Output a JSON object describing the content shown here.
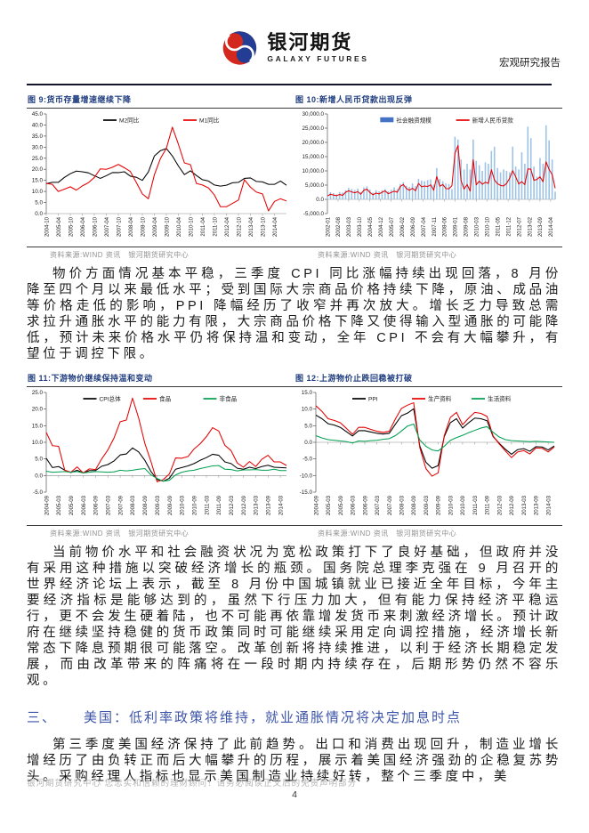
{
  "header": {
    "brand_cn": "银河期货",
    "brand_en": "GALAXY FUTURES",
    "doc_type": "宏观研究报告",
    "logo_blue": "#233D94",
    "logo_red": "#D2281E"
  },
  "figures": [
    {
      "title": "图 9:货币存量增速继续下降",
      "source": "资料来源:WIND 资讯　银河期货研究中心"
    },
    {
      "title": "图 10:新增人民币贷款出现反弹",
      "source": "资料来源:WIND 资讯　银河期货研究中心"
    },
    {
      "title": "图 11:下游物价继续保持温和变动",
      "source": "资料来源:WIND 资讯　银河期货研究中心"
    },
    {
      "title": "图 12:上游物价止跌回稳被打破",
      "source": "资料来源:WIND 资讯　银河期货研究中心"
    }
  ],
  "paragraphs": {
    "p1": "物价方面情况基本平稳，三季度 CPI 同比涨幅持续出现回落，8 月份降至四个月以来最低水平；受到国际大宗商品价格持续下降，原油、成品油等价格走低的影响，PPI 降幅经历了收窄并再次放大。增长乏力导致总需求拉升通胀水平的能力有限，大宗商品价格下降又使得输入型通胀的可能降低，预计未来价格水平仍将保持温和变动，全年 CPI 不会有大幅攀升，有望位于调控下限。",
    "p2": "当前物价水平和社会融资状况为宽松政策打下了良好基础，但政府并没有采用这种措施以突破经济增长的瓶颈。国务院总理李克强在 9 月召开的世界经济论坛上表示，截至 8 月份中国城镇就业已接近全年目标，今年主要经济指标是能够达到的，虽然下行压力加大，但有能力保持经济平稳运行，更不会发生硬着陆，也不可能再依靠增发货币来刺激经济增长。预计政府在继续坚持稳健的货币政策同时可能继续采用定向调控措施，经济增长新常态下降息预期很可能落空。改革创新将持续推进，以利于经济长期稳定发展，而由改革带来的阵痛将在一段时期内持续存在，后期形势仍然不容乐观。",
    "p3": "第三季度美国经济保持了此前趋势。出口和消费出现回升，制造业增长增经历了由负转正而后大幅攀升的历程，展示着美国经济强劲的企稳复苏势头。采购经理人指标也显示美国制造业持续好转，整个三季度中，美"
  },
  "section": {
    "number": "三、",
    "title": "美国：低利率政策将维持，就业通胀情况将决定加息时点",
    "color": "#3D55A8"
  },
  "footer": {
    "disclaimer": "银河期货研究中心 您忠实和信赖的理财顾问！请务必阅读正文后的免责声明部分",
    "page_number": "4"
  },
  "chart_data": [
    {
      "type": "line",
      "title": "货币存量增速继续下降",
      "ylim": [
        0,
        45
      ],
      "margins": {
        "l": 22,
        "r": 9,
        "t": 4,
        "b": 36
      },
      "y_ticks": [
        {
          "v": 45,
          "t": "45.0"
        },
        {
          "v": 40,
          "t": "40.0"
        },
        {
          "v": 35,
          "t": "35.0"
        },
        {
          "v": 30,
          "t": "30.0"
        },
        {
          "v": 25,
          "t": "25.0"
        },
        {
          "v": 20,
          "t": "20.0"
        },
        {
          "v": 15,
          "t": "15.0"
        },
        {
          "v": 10,
          "t": "10.0"
        },
        {
          "v": 5,
          "t": "5.0"
        },
        {
          "v": 0,
          "t": "0.0"
        }
      ],
      "x_ticks": [
        "2004-10",
        "2005-04",
        "2005-10",
        "2006-04",
        "2006-10",
        "2007-04",
        "2007-10",
        "2008-04",
        "2008-10",
        "2009-04",
        "2009-10",
        "2010-04",
        "2010-10",
        "2011-04",
        "2011-10",
        "2012-04",
        "2012-10",
        "2013-04",
        "2013-10",
        "2014-04"
      ],
      "x_tick_every": 2,
      "series": [
        {
          "name": "M2同比",
          "type": "line",
          "color": "#000000",
          "values": [
            13.5,
            14.1,
            14.1,
            16.3,
            18.0,
            19.2,
            18.9,
            18.4,
            17.1,
            15.9,
            17.1,
            18.5,
            18.5,
            18.9,
            16.9,
            16.4,
            15.0,
            18.8,
            26.0,
            28.4,
            29.4,
            26.0,
            21.5,
            17.6,
            19.3,
            17.2,
            15.3,
            14.7,
            12.9,
            12.4,
            12.8,
            13.9,
            14.1,
            15.9,
            16.1,
            14.5,
            14.3,
            13.2,
            13.2,
            14.7,
            12.8
          ]
        },
        {
          "name": "M1同比",
          "type": "line",
          "color": "#E60000",
          "values": [
            13.6,
            13.2,
            10.0,
            11.0,
            12.1,
            10.6,
            12.5,
            13.9,
            16.3,
            20.2,
            20.0,
            20.9,
            22.2,
            20.7,
            19.0,
            14.0,
            8.9,
            6.7,
            17.5,
            24.8,
            29.5,
            39.0,
            31.3,
            22.9,
            22.1,
            13.6,
            12.9,
            11.6,
            8.4,
            3.1,
            3.1,
            4.6,
            6.1,
            15.3,
            11.9,
            9.7,
            8.9,
            1.2,
            5.5,
            6.7,
            5.7
          ]
        }
      ]
    },
    {
      "type": "bar-line",
      "title": "新增人民币贷款出现反弹",
      "ylim": [
        -5000,
        30000
      ],
      "margins": {
        "l": 37,
        "r": 8,
        "t": 4,
        "b": 36
      },
      "y_ticks": [
        {
          "v": 30000,
          "t": "30,000.0"
        },
        {
          "v": 25000,
          "t": "25,000.0"
        },
        {
          "v": 20000,
          "t": "20,000.0"
        },
        {
          "v": 15000,
          "t": "15,000.0"
        },
        {
          "v": 10000,
          "t": "10,000.0"
        },
        {
          "v": 5000,
          "t": "5,000.0"
        },
        {
          "v": 0,
          "t": "0.0"
        },
        {
          "v": -5000,
          "t": "-5,000.0"
        }
      ],
      "x_ticks": [
        "2002-01",
        "2002-08",
        "2003-03",
        "2003-10",
        "2004-05",
        "2004-12",
        "2005-07",
        "2006-02",
        "2006-09",
        "2007-04",
        "2007-11",
        "2008-06",
        "2009-01",
        "2009-08",
        "2010-03",
        "2010-10",
        "2011-05",
        "2011-12",
        "2012-07",
        "2013-02",
        "2013-09",
        "2014-04"
      ],
      "x_tick_every": 3.5,
      "series": [
        {
          "name": "社会融资规模",
          "type": "bar",
          "color": "#9DC3E6",
          "legend_color": "#4472C4",
          "values": [
            2000,
            2500,
            2200,
            1800,
            2600,
            2400,
            3200,
            4000,
            3600,
            3300,
            3800,
            2600,
            4200,
            4600,
            3400,
            2400,
            3200,
            2800,
            3200,
            3600,
            2800,
            3400,
            4200,
            3600,
            5400,
            6000,
            4800,
            4400,
            5600,
            4600,
            7200,
            6600,
            6400,
            6800,
            7000,
            5200,
            11000,
            7200,
            6400,
            5600,
            5400,
            3600,
            22000,
            21000,
            14000,
            10500,
            12500,
            10500,
            21000,
            13500,
            12000,
            10000,
            13000,
            12500,
            17000,
            18500,
            11000,
            9500,
            10500,
            10000,
            9500,
            18500,
            11500,
            10500,
            16500,
            12500,
            25500,
            21500,
            11500,
            8000,
            14500,
            12500,
            26000,
            20700,
            14000,
            2700
          ]
        },
        {
          "name": "新增人民币贷款",
          "type": "line",
          "color": "#E60000",
          "values": [
            1200,
            1800,
            1500,
            1300,
            1700,
            1400,
            2500,
            3000,
            2600,
            2300,
            2700,
            1800,
            3200,
            3600,
            2400,
            1600,
            2200,
            1900,
            2500,
            3000,
            2000,
            2400,
            2900,
            2500,
            4500,
            5200,
            3800,
            3200,
            3900,
            3000,
            5600,
            4400,
            4700,
            4500,
            5100,
            3200,
            8000,
            4600,
            5200,
            3800,
            3700,
            4800,
            16200,
            18900,
            6600,
            3600,
            5200,
            2900,
            13900,
            5100,
            6400,
            5300,
            6000,
            5600,
            10400,
            6800,
            5500,
            4900,
            4700,
            5600,
            7400,
            10100,
            7900,
            5400,
            6200,
            5200,
            10700,
            10600,
            6700,
            7000,
            7900,
            6200,
            13200,
            10500,
            8700,
            3900
          ]
        }
      ]
    },
    {
      "type": "line",
      "title": "下游物价继续保持温和变动",
      "ylim": [
        -5,
        25
      ],
      "margins": {
        "l": 22,
        "r": 9,
        "t": 4,
        "b": 36
      },
      "y_ticks": [
        {
          "v": 25,
          "t": "25.0"
        },
        {
          "v": 20,
          "t": "20.0"
        },
        {
          "v": 15,
          "t": "15.0"
        },
        {
          "v": 10,
          "t": "10.0"
        },
        {
          "v": 5,
          "t": "5.0"
        },
        {
          "v": 0,
          "t": "0.0"
        },
        {
          "v": -5,
          "t": "-5.0"
        }
      ],
      "x_ticks": [
        "2004-09",
        "2005-03",
        "2005-09",
        "2006-03",
        "2006-09",
        "2007-03",
        "2007-09",
        "2008-03",
        "2008-09",
        "2009-03",
        "2009-09",
        "2010-03",
        "2010-09",
        "2011-03",
        "2011-09",
        "2012-03",
        "2012-09",
        "2013-03",
        "2013-09",
        "2014-03"
      ],
      "x_tick_every": 2,
      "series": [
        {
          "name": "CPI总体",
          "type": "line",
          "color": "#000000",
          "values": [
            5.2,
            2.4,
            2.7,
            1.6,
            0.9,
            1.6,
            0.8,
            1.5,
            1.5,
            2.8,
            3.3,
            4.4,
            6.2,
            6.5,
            8.3,
            7.1,
            4.6,
            1.2,
            -1.2,
            -1.7,
            -0.8,
            1.9,
            2.4,
            2.9,
            3.6,
            4.6,
            5.4,
            6.4,
            6.1,
            4.1,
            3.6,
            2.2,
            1.9,
            2.5,
            2.1,
            2.7,
            3.1,
            2.5,
            2.4,
            2.3
          ]
        },
        {
          "name": "食品",
          "type": "line",
          "color": "#E60000",
          "values": [
            13.0,
            9.0,
            8.8,
            1.6,
            1.0,
            2.6,
            0.8,
            2.0,
            1.8,
            5.0,
            7.7,
            11.3,
            16.2,
            16.7,
            23.3,
            17.3,
            9.7,
            4.2,
            -1.9,
            -1.2,
            0.5,
            5.3,
            5.2,
            5.7,
            8.0,
            9.6,
            11.7,
            14.4,
            13.4,
            9.1,
            7.5,
            3.8,
            2.5,
            4.2,
            2.7,
            4.9,
            6.1,
            4.1,
            4.1,
            3.0
          ]
        },
        {
          "name": "非食品",
          "type": "line",
          "color": "#00A050",
          "values": [
            1.3,
            1.0,
            1.1,
            1.2,
            1.0,
            1.2,
            0.8,
            1.0,
            1.2,
            1.1,
            1.0,
            1.1,
            1.6,
            1.4,
            1.6,
            1.9,
            2.1,
            0.2,
            -0.9,
            -1.7,
            -1.4,
            0.2,
            1.0,
            1.4,
            1.6,
            2.1,
            2.5,
            2.9,
            3.0,
            1.9,
            1.8,
            1.4,
            1.7,
            1.7,
            1.8,
            1.6,
            1.6,
            1.9,
            1.5,
            1.5
          ]
        }
      ]
    },
    {
      "type": "line",
      "title": "上游物价止跌回稳被打破",
      "ylim": [
        -15,
        15
      ],
      "margins": {
        "l": 24,
        "r": 9,
        "t": 4,
        "b": 36
      },
      "y_ticks": [
        {
          "v": 15,
          "t": "15.0"
        },
        {
          "v": 10,
          "t": "10.0"
        },
        {
          "v": 5,
          "t": "5.0"
        },
        {
          "v": 0,
          "t": "0.0"
        },
        {
          "v": -5,
          "t": "-5.0"
        },
        {
          "v": -10,
          "t": "-10.0"
        },
        {
          "v": -15,
          "t": "-15.0"
        }
      ],
      "x_ticks": [
        "2004-09",
        "2005-03",
        "2005-09",
        "2006-03",
        "2006-09",
        "2007-03",
        "2007-09",
        "2008-03",
        "2008-09",
        "2009-03",
        "2009-09",
        "2010-03",
        "2010-09",
        "2011-03",
        "2011-09",
        "2012-03",
        "2012-09",
        "2013-03",
        "2013-09",
        "2014-03"
      ],
      "x_tick_every": 2,
      "series": [
        {
          "name": "PPI",
          "type": "line",
          "color": "#000000",
          "values": [
            8.2,
            7.1,
            5.6,
            5.2,
            4.5,
            3.2,
            1.9,
            3.5,
            3.5,
            3.1,
            2.7,
            2.5,
            2.7,
            5.4,
            8.0,
            8.8,
            10.1,
            -1.1,
            -6.0,
            -7.8,
            -7.0,
            1.7,
            5.9,
            7.1,
            4.3,
            5.9,
            7.3,
            7.1,
            6.5,
            1.7,
            -0.3,
            -2.1,
            -3.6,
            -2.2,
            -1.9,
            -2.7,
            -1.3,
            -1.4,
            -2.3,
            -1.1
          ]
        },
        {
          "name": "生产资料",
          "type": "line",
          "color": "#E60000",
          "values": [
            11.0,
            9.3,
            7.1,
            6.6,
            5.9,
            4.2,
            2.4,
            4.5,
            4.5,
            3.9,
            3.3,
            3.0,
            3.3,
            7.0,
            10.2,
            11.2,
            11.9,
            -1.6,
            -7.9,
            -10.2,
            -9.2,
            2.0,
            7.5,
            9.0,
            5.3,
            7.3,
            9.0,
            8.7,
            7.8,
            1.9,
            -0.5,
            -2.6,
            -4.6,
            -2.9,
            -2.5,
            -3.5,
            -1.7,
            -1.8,
            -2.9,
            -1.4
          ]
        },
        {
          "name": "生活资料",
          "type": "line",
          "color": "#00A050",
          "values": [
            2.0,
            1.3,
            0.8,
            0.6,
            0.4,
            0.2,
            -0.2,
            0.4,
            0.3,
            0.5,
            0.6,
            0.9,
            1.1,
            2.0,
            3.4,
            4.9,
            5.5,
            0.7,
            -1.2,
            -2.3,
            -2.6,
            -1.2,
            0.6,
            1.4,
            2.1,
            2.9,
            3.6,
            4.3,
            4.7,
            3.0,
            1.6,
            0.8,
            0.5,
            0.4,
            0.3,
            0.2,
            0.3,
            0.2,
            0.1,
            0.0
          ]
        }
      ]
    }
  ]
}
